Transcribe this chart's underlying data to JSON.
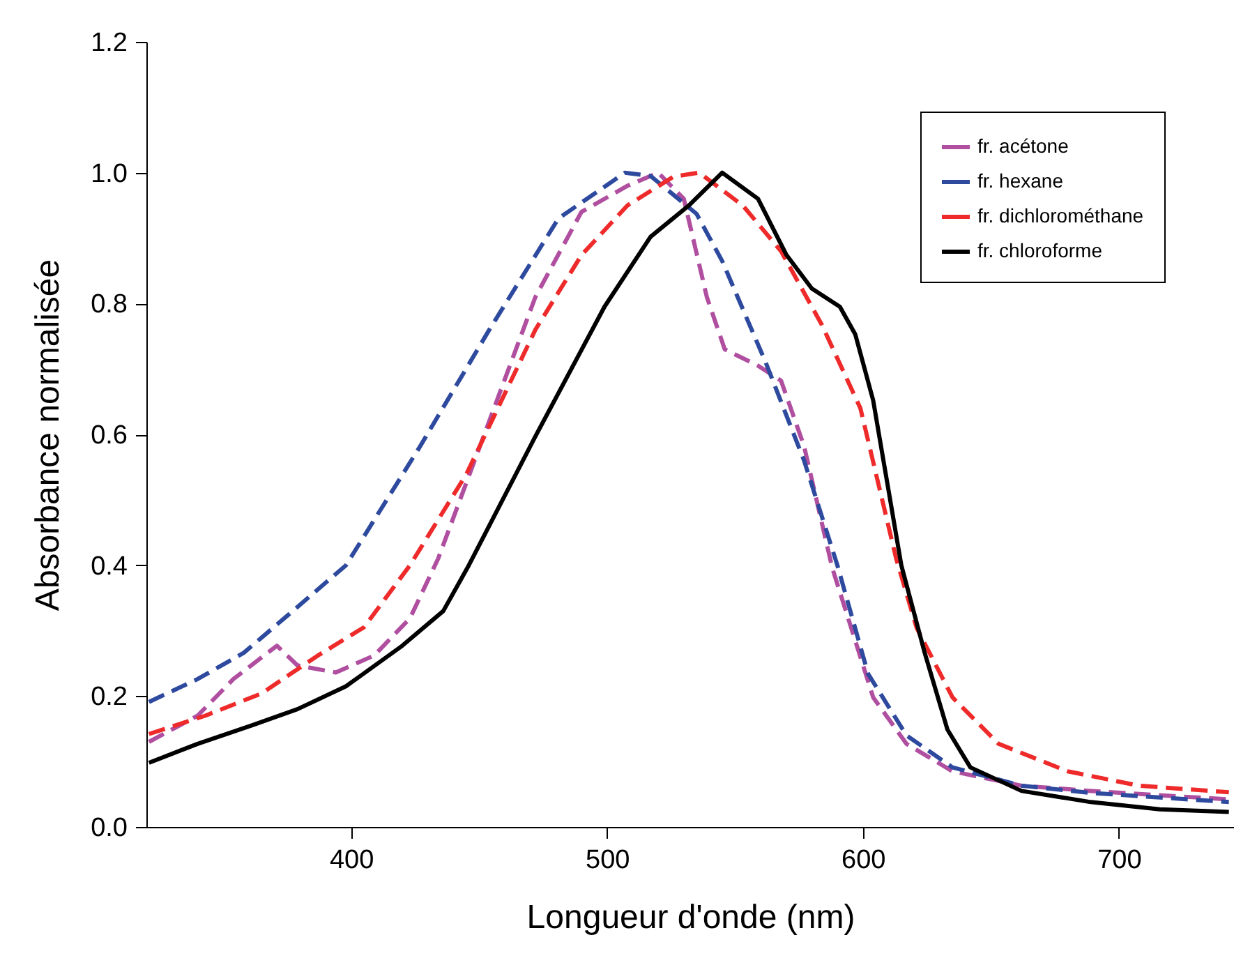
{
  "chart_data": {
    "type": "line",
    "xlabel": "Longueur d'onde (nm)",
    "ylabel": "Absorbance normalisée",
    "xlim": [
      320,
      745
    ],
    "xticks": [
      400,
      500,
      600,
      700
    ],
    "ylim": [
      0,
      1.2
    ],
    "yticks": [
      {
        "value": 0,
        "label": "0.0"
      },
      0.2,
      0.4,
      0.6,
      0.8,
      {
        "value": 1,
        "label": "1.0"
      },
      1.2
    ],
    "grid": false,
    "legend": "top right",
    "marker": "none",
    "series": [
      {
        "name": "fr. acétone",
        "color": "#b04ea0",
        "line_style": "dashed",
        "x": [
          321,
          340,
          354,
          371,
          379,
          394,
          409,
          423,
          434,
          455,
          472,
          490,
          508,
          520,
          530,
          539,
          546,
          559,
          568,
          577,
          588,
          604,
          617,
          635,
          662,
          689,
          743
        ],
        "values": [
          0.13,
          0.17,
          0.226,
          0.277,
          0.247,
          0.236,
          0.262,
          0.319,
          0.41,
          0.631,
          0.81,
          0.94,
          0.98,
          1.0,
          0.96,
          0.81,
          0.73,
          0.705,
          0.682,
          0.582,
          0.396,
          0.198,
          0.127,
          0.085,
          0.063,
          0.055,
          0.042
        ]
      },
      {
        "name": "fr. hexane",
        "color": "#2e4a9e",
        "line_style": "dashed",
        "x": [
          321,
          340,
          358,
          376,
          398,
          427,
          454,
          481,
          507,
          517,
          535,
          545,
          562,
          577,
          590,
          602,
          617,
          635,
          662,
          689,
          743
        ],
        "values": [
          0.191,
          0.226,
          0.266,
          0.326,
          0.4,
          0.582,
          0.76,
          0.93,
          1.0,
          0.995,
          0.937,
          0.865,
          0.71,
          0.56,
          0.4,
          0.234,
          0.14,
          0.091,
          0.063,
          0.052,
          0.038
        ]
      },
      {
        "name": "fr. dichlorométhane",
        "color": "#ee2a2a",
        "line_style": "dashed",
        "x": [
          321,
          343,
          365,
          387,
          405,
          423,
          445,
          472,
          490,
          508,
          526,
          536,
          553,
          568,
          584,
          599,
          613,
          621,
          635,
          653,
          680,
          708,
          743
        ],
        "values": [
          0.142,
          0.17,
          0.204,
          0.262,
          0.305,
          0.4,
          0.539,
          0.76,
          0.874,
          0.95,
          0.994,
          1.0,
          0.95,
          0.88,
          0.767,
          0.64,
          0.41,
          0.304,
          0.198,
          0.127,
          0.085,
          0.063,
          0.053
        ]
      },
      {
        "name": "fr. chloroforme",
        "color": "#000000",
        "line_style": "solid",
        "x": [
          321,
          340,
          361,
          379,
          398,
          420,
          436,
          446,
          472,
          499,
          517,
          532,
          545,
          559,
          570,
          580,
          591,
          597,
          604,
          615,
          624,
          633,
          642,
          662,
          689,
          716,
          743
        ],
        "values": [
          0.098,
          0.127,
          0.155,
          0.18,
          0.215,
          0.277,
          0.33,
          0.4,
          0.597,
          0.795,
          0.902,
          0.95,
          1.0,
          0.96,
          0.875,
          0.823,
          0.795,
          0.753,
          0.652,
          0.4,
          0.268,
          0.149,
          0.091,
          0.055,
          0.038,
          0.027,
          0.023
        ]
      }
    ]
  }
}
